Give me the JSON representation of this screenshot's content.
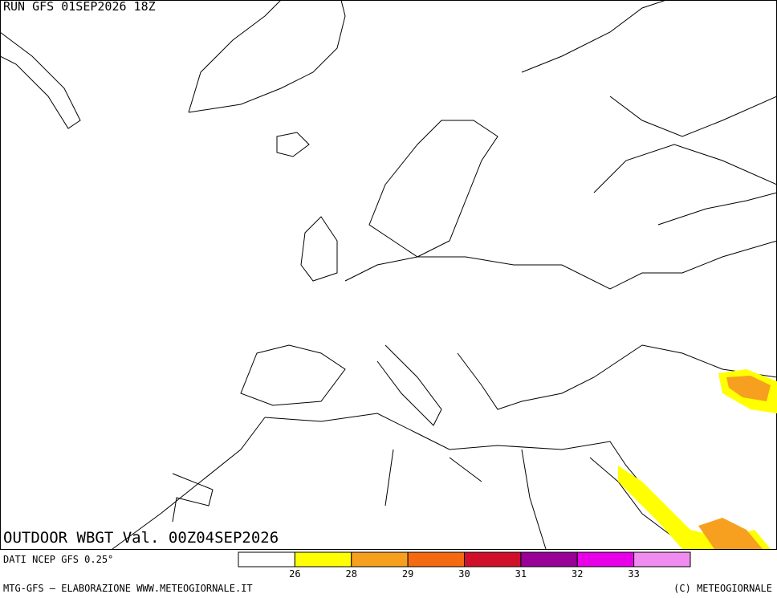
{
  "header": {
    "run": "RUN GFS 01SEP2026 18Z"
  },
  "map": {
    "title": "OUTDOOR WBGT Val. 00Z04SEP2026"
  },
  "footer": {
    "source": "DATI NCEP GFS 0.25°",
    "credit": "MTG-GFS — ELABORAZIONE WWW.METEOGIORNALE.IT",
    "copyright": "(C) METEOGIORNALE"
  },
  "legend": {
    "colors": [
      "#ffffff",
      "#ffff00",
      "#f7a020",
      "#f56a10",
      "#d0102a",
      "#980098",
      "#e800e8",
      "#f08cf0"
    ],
    "labels": [
      "26",
      "28",
      "29",
      "30",
      "31",
      "32",
      "33"
    ]
  }
}
